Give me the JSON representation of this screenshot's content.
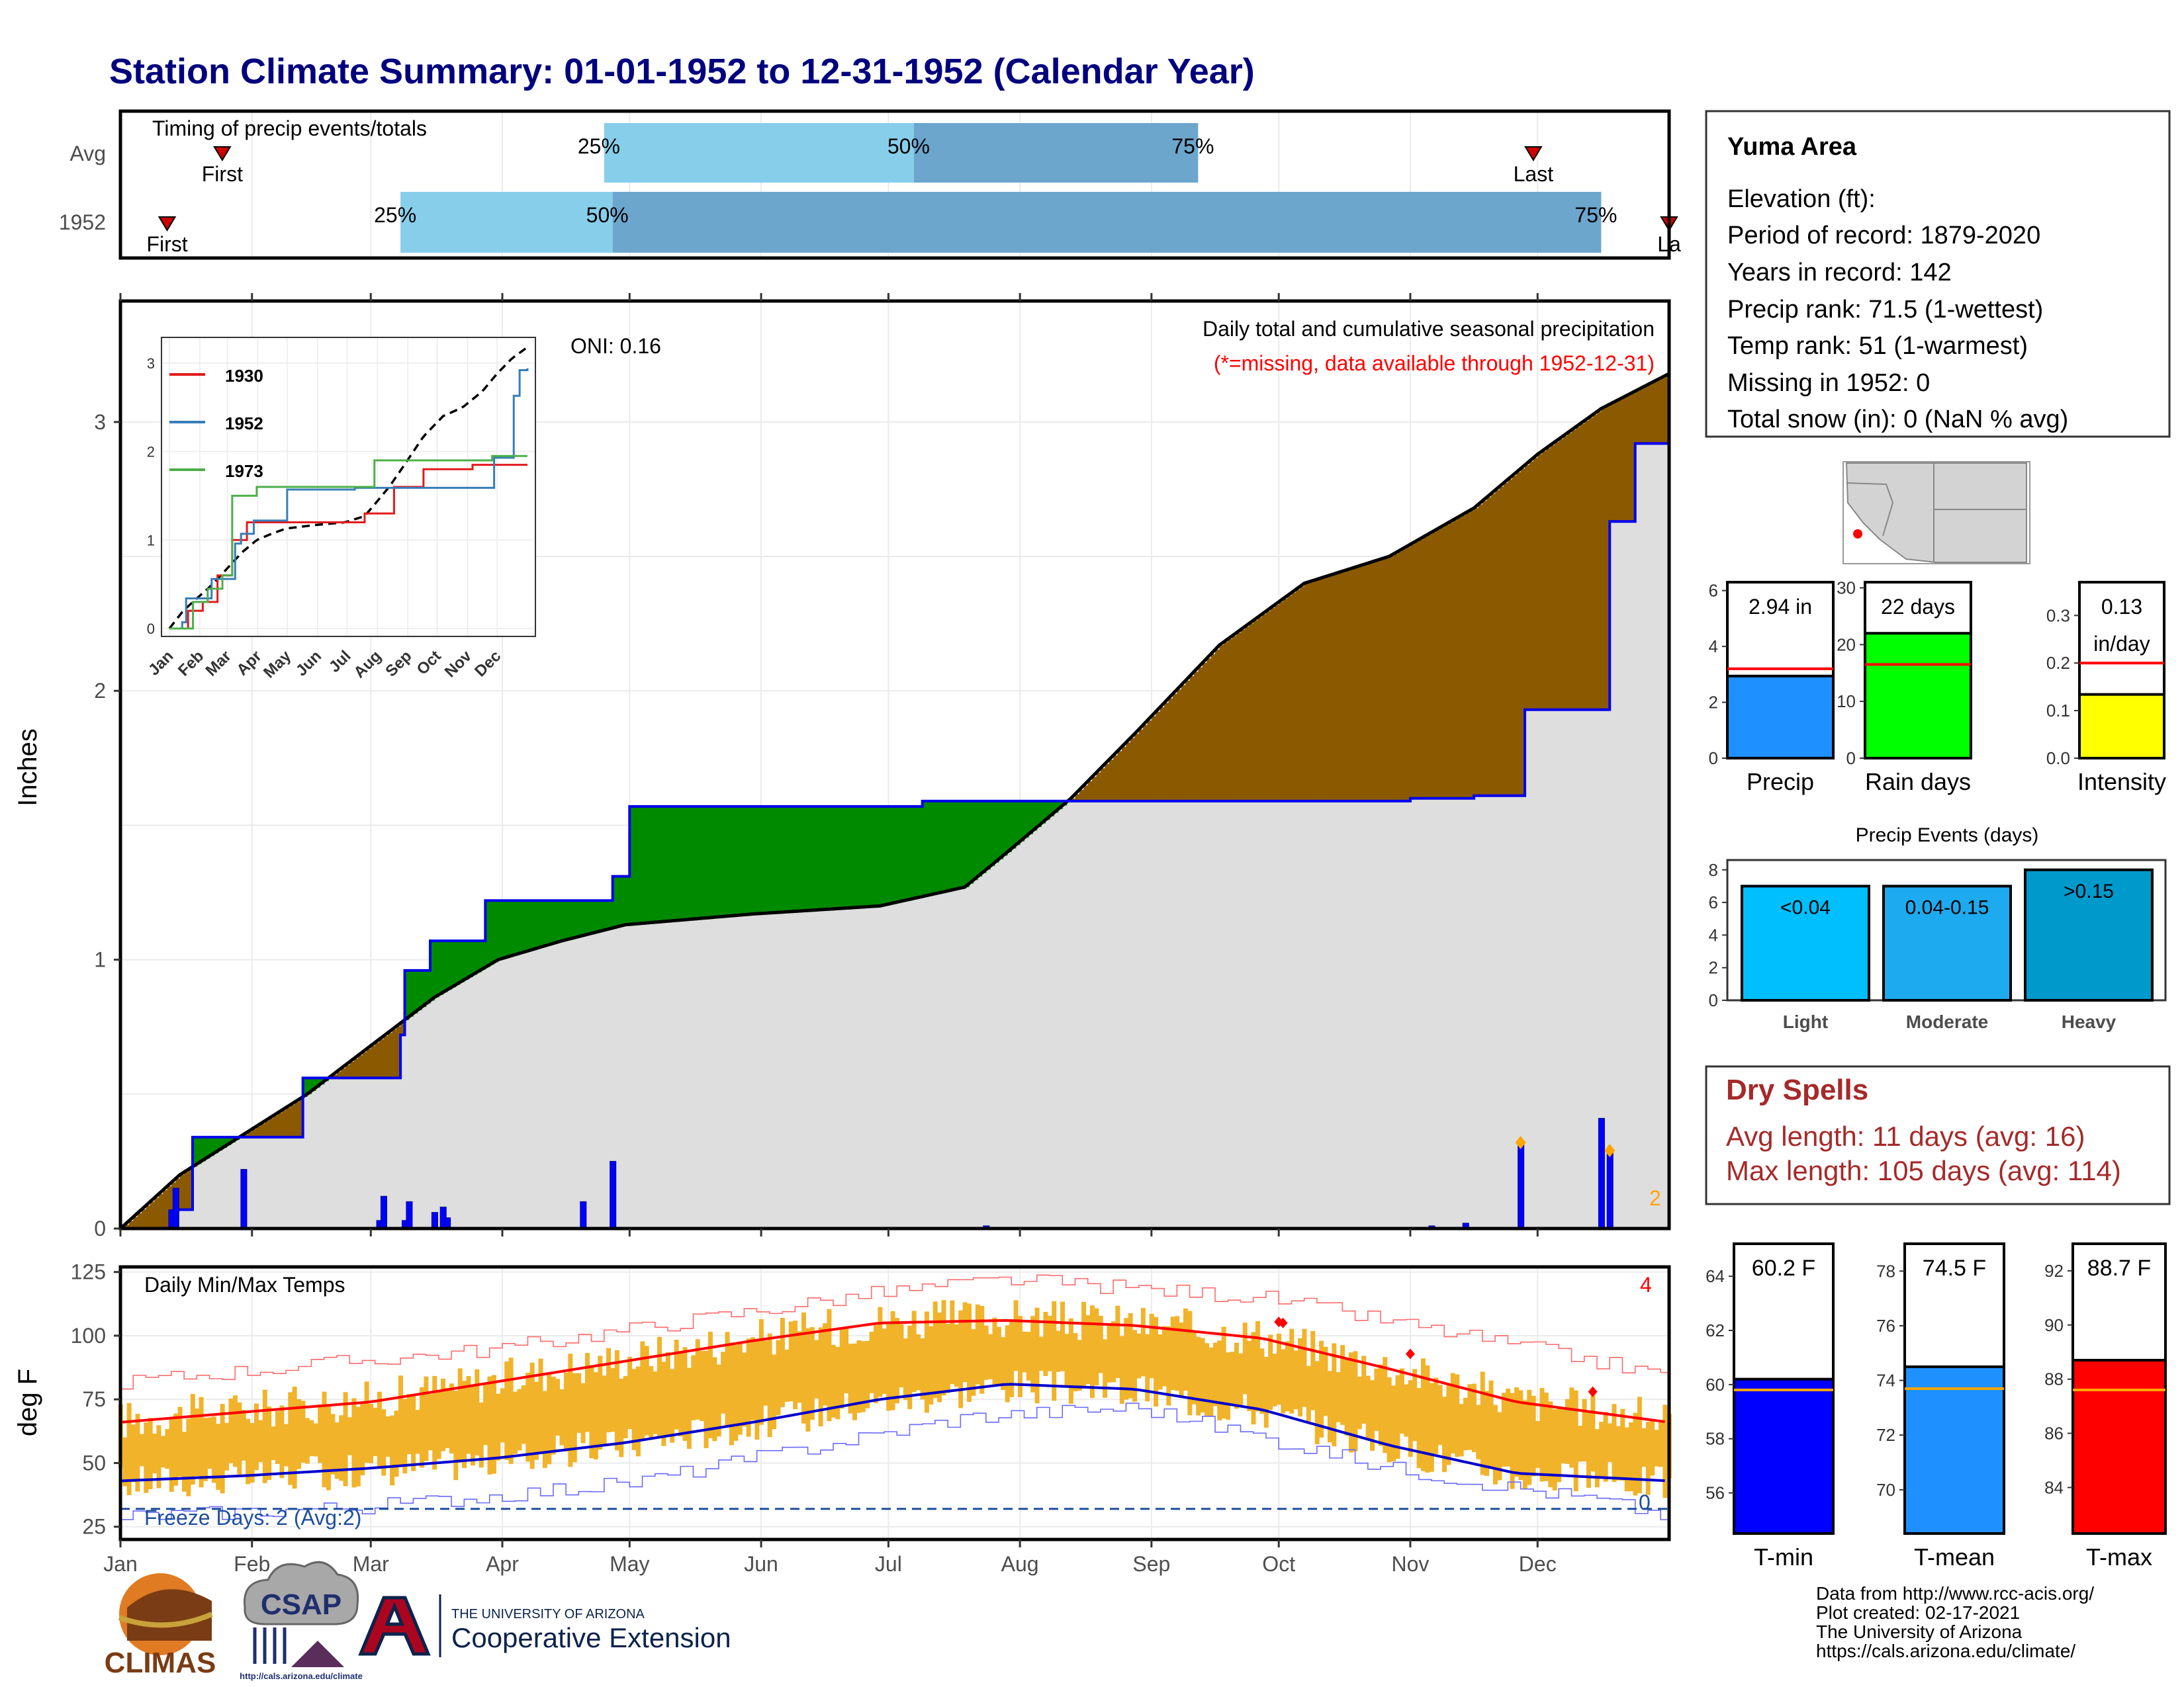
{
  "title": "Station Climate Summary: 01-01-1952 to 12-31-1952 (Calendar Year)",
  "colors": {
    "title": "#00007f",
    "above_avg": "#8b5a00",
    "below_avg": "#008a00",
    "avg_fill": "#dedede",
    "obs_line": "#0000ee",
    "light_blue": "#87ceeb",
    "mid_blue": "#6ca6cd",
    "temp_bar": "#f0b32a",
    "dry_text": "#a52a2a"
  },
  "timing": {
    "heading": "Timing of precip events/totals",
    "rows": [
      {
        "label": "Avg",
        "first_doy": 25,
        "p25_doy": 115,
        "p50_doy": 188,
        "p75_doy": 255,
        "last_doy": 334,
        "first_label": "First",
        "last_label": "Last",
        "p25_label": "25%",
        "p50_label": "50%",
        "p75_label": "75%"
      },
      {
        "label": "1952",
        "first_doy": 12,
        "p25_doy": 67,
        "p50_doy": 117,
        "p75_doy": 350,
        "last_doy": 366,
        "first_label": "First",
        "last_label": "La",
        "p25_label": "25%",
        "p50_label": "50%",
        "p75_label": "75%"
      }
    ]
  },
  "precip_panel": {
    "ylabel": "Inches",
    "oni": "ONI: 0.16",
    "caption": "Daily total and cumulative seasonal precipitation",
    "missing_note": "(*=missing, data available through 1952-12-31)",
    "count_note": "2"
  },
  "inset": {
    "legend": [
      "1930",
      "1952",
      "1973"
    ],
    "colors": [
      "#e31a1c",
      "#377eb8",
      "#4daf4a"
    ],
    "months": [
      "Jan",
      "Feb",
      "Mar",
      "Apr",
      "May",
      "Jun",
      "Jul",
      "Aug",
      "Sep",
      "Oct",
      "Nov",
      "Dec"
    ],
    "yticks": [
      "0",
      "1",
      "2",
      "3"
    ]
  },
  "temp_panel": {
    "ylabel": "deg F",
    "heading": "Daily Min/Max Temps",
    "record_count": "4",
    "freeze": "Freeze Days: 2 (Avg:2)",
    "freeze_count": "0"
  },
  "station": {
    "name": "Yuma Area",
    "lines": [
      "Elevation (ft):",
      "Period of record: 1879-2020",
      "Years in record: 142",
      "Precip rank: 71.5 (1-wettest)",
      "Temp rank: 51 (1-warmest)",
      "Missing in 1952: 0",
      "Total snow (in): 0 (NaN % avg)"
    ]
  },
  "mini_charts": {
    "precip": {
      "label": "Precip",
      "value_text": "2.94 in",
      "value": 2.94,
      "avg": 3.2,
      "ymax": 6.3,
      "ticks": [
        "0",
        "2",
        "4",
        "6"
      ],
      "color": "#1e90ff"
    },
    "rain_days": {
      "label": "Rain days",
      "value_text": "22 days",
      "value": 22,
      "avg": 16.5,
      "ymax": 31,
      "ticks": [
        "0",
        "10",
        "20",
        "30"
      ],
      "color": "#00ff00"
    },
    "intensity": {
      "label": "Intensity",
      "value_text": "0.13",
      "value_text2": "in/day",
      "value": 0.134,
      "avg": 0.2,
      "ymax": 0.37,
      "ticks": [
        "0.0",
        "0.1",
        "0.2",
        "0.3"
      ],
      "color": "#ffff00"
    }
  },
  "events": {
    "title": "Precip Events (days)",
    "bars": [
      {
        "label": "Light",
        "tag": "<0.04",
        "value": 7,
        "color": "#00bfff"
      },
      {
        "label": "Moderate",
        "tag": "0.04-0.15",
        "value": 7,
        "color": "#1eaaee"
      },
      {
        "label": "Heavy",
        "tag": ">0.15",
        "value": 8,
        "color": "#0099cc"
      }
    ],
    "ticks": [
      "0",
      "2",
      "4",
      "6",
      "8"
    ]
  },
  "dry_spells": {
    "title": "Dry Spells",
    "avg": "Avg length: 11 days (avg: 16)",
    "max": "Max length: 105 days (avg: 114)"
  },
  "temp_boxes": {
    "tmin": {
      "label": "T-min",
      "value_text": "60.2 F",
      "value": 60.2,
      "avg": 59.8,
      "ymin": 54.5,
      "ymax": 65.2,
      "ticks": [
        "56",
        "58",
        "60",
        "62",
        "64"
      ],
      "color": "#0000ff"
    },
    "tmean": {
      "label": "T-mean",
      "value_text": "74.5 F",
      "value": 74.5,
      "avg": 73.7,
      "ymin": 68.4,
      "ymax": 79,
      "ticks": [
        "70",
        "72",
        "74",
        "76",
        "78"
      ],
      "color": "#1e90ff"
    },
    "tmax": {
      "label": "T-max",
      "value_text": "88.7 F",
      "value": 88.7,
      "avg": 87.6,
      "ymin": 82.3,
      "ymax": 93,
      "ticks": [
        "84",
        "86",
        "88",
        "90",
        "92"
      ],
      "color": "#ff0000"
    }
  },
  "footer": {
    "credits": [
      "Data from http://www.rcc-acis.org/",
      "Plot created: 02-17-2021",
      "The University of Arizona",
      "https://cals.arizona.edu/climate/"
    ],
    "logo_climas": "CLIMAS",
    "logo_csap": "CSAP",
    "logo_csap_url": "http://cals.arizona.edu/climate",
    "logo_ua_top": "THE UNIVERSITY OF ARIZONA",
    "logo_ua_bottom": "Cooperative Extension"
  },
  "chart_data": [
    {
      "type": "area",
      "title": "Daily total and cumulative seasonal precipitation",
      "ylabel": "Inches",
      "ylim": [
        0,
        3.45
      ],
      "x_ticks": [
        "Jan",
        "Feb",
        "Mar",
        "Apr",
        "May",
        "Jun",
        "Jul",
        "Aug",
        "Sep",
        "Oct",
        "Nov",
        "Dec"
      ],
      "y_ticks": [
        0,
        1,
        2,
        3
      ],
      "avg_cumulative": {
        "doy": [
          1,
          15,
          30,
          45,
          60,
          75,
          90,
          105,
          120,
          150,
          180,
          200,
          210,
          225,
          240,
          260,
          280,
          300,
          320,
          335,
          350,
          366
        ],
        "inches": [
          0,
          0.2,
          0.35,
          0.5,
          0.68,
          0.86,
          1.0,
          1.07,
          1.13,
          1.17,
          1.2,
          1.27,
          1.4,
          1.6,
          1.84,
          2.17,
          2.4,
          2.5,
          2.68,
          2.88,
          3.05,
          3.18
        ]
      },
      "cumulative_1952": {
        "doy": [
          1,
          13,
          14,
          17,
          18,
          30,
          43,
          44,
          60,
          67,
          68,
          73,
          74,
          87,
          117,
          120,
          121,
          182,
          190,
          215,
          290,
          305,
          320,
          331,
          332,
          351,
          352,
          358,
          366
        ],
        "inches": [
          0,
          0,
          0.07,
          0.07,
          0.34,
          0.34,
          0.34,
          0.56,
          0.56,
          0.72,
          0.96,
          0.96,
          1.07,
          1.22,
          1.31,
          1.31,
          1.57,
          1.57,
          1.59,
          1.59,
          1.59,
          1.6,
          1.61,
          1.61,
          1.93,
          1.93,
          2.63,
          2.92,
          2.94
        ]
      },
      "daily_1952": {
        "doy": [
          13,
          14,
          30,
          62,
          63,
          68,
          69,
          75,
          77,
          78,
          110,
          117,
          205,
          310,
          318,
          331,
          350,
          352
        ],
        "inches": [
          0.07,
          0.15,
          0.22,
          0.03,
          0.12,
          0.03,
          0.1,
          0.06,
          0.08,
          0.04,
          0.1,
          0.25,
          0.01,
          0.01,
          0.02,
          0.32,
          0.41,
          0.29
        ]
      }
    },
    {
      "type": "line",
      "title": "",
      "legend": [
        "1930",
        "1952",
        "1973"
      ],
      "x_ticks": [
        "Jan",
        "Feb",
        "Mar",
        "Apr",
        "May",
        "Jun",
        "Jul",
        "Aug",
        "Sep",
        "Oct",
        "Nov",
        "Dec"
      ],
      "ylim": [
        0,
        3.2
      ],
      "series": [
        {
          "name": "1930",
          "doy": [
            1,
            20,
            35,
            50,
            65,
            80,
            200,
            230,
            260,
            310,
            366
          ],
          "inches": [
            0,
            0.2,
            0.3,
            0.6,
            1.0,
            1.2,
            1.3,
            1.6,
            1.8,
            1.85,
            1.85
          ]
        },
        {
          "name": "1952",
          "doy": [
            1,
            14,
            18,
            44,
            68,
            74,
            87,
            121,
            190,
            332,
            352,
            358,
            366
          ],
          "inches": [
            0,
            0.07,
            0.34,
            0.56,
            0.96,
            1.07,
            1.22,
            1.57,
            1.59,
            1.93,
            2.63,
            2.92,
            2.94
          ]
        },
        {
          "name": "1973",
          "doy": [
            1,
            25,
            40,
            55,
            65,
            90,
            150,
            210,
            250,
            330,
            366
          ],
          "inches": [
            0,
            0.3,
            0.45,
            0.6,
            1.5,
            1.6,
            1.6,
            1.9,
            1.9,
            1.95,
            1.95
          ]
        }
      ]
    },
    {
      "type": "bar",
      "title": "Daily Min/Max Temps",
      "ylabel": "deg F",
      "ylim": [
        20,
        127
      ],
      "x_ticks": [
        "Jan",
        "Feb",
        "Mar",
        "Apr",
        "May",
        "Jun",
        "Jul",
        "Aug",
        "Sep",
        "Oct",
        "Nov",
        "Dec"
      ],
      "y_ticks": [
        25,
        50,
        75,
        100,
        125
      ],
      "normal_max": {
        "doy": [
          1,
          30,
          60,
          90,
          120,
          150,
          180,
          210,
          240,
          270,
          300,
          330,
          366
        ],
        "degF": [
          66,
          70,
          74,
          82,
          90,
          98,
          105,
          106,
          104,
          99,
          87,
          74,
          66
        ]
      },
      "normal_min": {
        "doy": [
          1,
          30,
          60,
          90,
          120,
          150,
          180,
          210,
          240,
          270,
          300,
          330,
          366
        ],
        "degF": [
          43,
          45,
          48,
          52,
          58,
          66,
          75,
          81,
          79,
          71,
          57,
          46,
          43
        ]
      },
      "record_max": {
        "doy": [
          1,
          90,
          180,
          210,
          270,
          330,
          366
        ],
        "degF": [
          82,
          95,
          117,
          122,
          115,
          96,
          84
        ]
      },
      "record_min": {
        "doy": [
          1,
          60,
          120,
          200,
          240,
          300,
          350,
          366
        ],
        "degF": [
          29,
          33,
          42,
          68,
          72,
          48,
          35,
          29
        ]
      },
      "freeze_line_degF": 32,
      "record_highs_doy": [
        274,
        275,
        305,
        348
      ]
    },
    {
      "type": "bar",
      "title": "",
      "categories": [
        "Precip",
        "Rain days",
        "Intensity"
      ],
      "values": [
        2.94,
        22,
        0.13
      ],
      "averages": [
        3.2,
        16.5,
        0.2
      ]
    },
    {
      "type": "bar",
      "title": "Precip Events (days)",
      "categories": [
        "Light",
        "Moderate",
        "Heavy"
      ],
      "values": [
        7,
        7,
        8
      ]
    },
    {
      "type": "bar",
      "title": "",
      "categories": [
        "T-min",
        "T-mean",
        "T-max"
      ],
      "values": [
        60.2,
        74.5,
        88.7
      ],
      "averages": [
        59.8,
        73.7,
        87.6
      ]
    }
  ]
}
